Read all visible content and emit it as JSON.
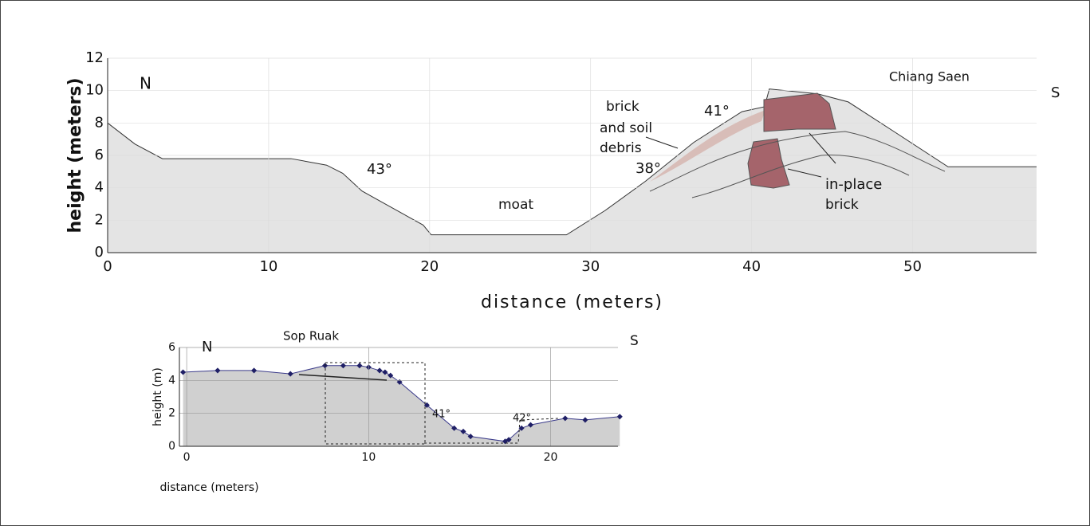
{
  "chart_data": [
    {
      "type": "area",
      "xlabel": "distance (meters)",
      "ylabel": "height (meters)",
      "x": [
        0,
        1.7,
        3.4,
        11.4,
        13.6,
        14.6,
        15.8,
        19.6,
        20.1,
        28.5,
        30.9,
        33.4,
        36.4,
        39.4,
        40.8,
        41.1,
        44.1,
        46.0,
        48.8,
        52.2,
        57.7
      ],
      "series": [
        {
          "name": "Chiang Saen",
          "color": "#333333",
          "fill": "#e4e4e4",
          "values": [
            8.0,
            6.7,
            5.8,
            5.8,
            5.4,
            4.9,
            3.8,
            1.7,
            1.1,
            1.1,
            2.6,
            4.4,
            6.8,
            8.7,
            9.0,
            10.1,
            9.8,
            9.3,
            7.5,
            5.3,
            5.3
          ]
        }
      ],
      "xlim": [
        0,
        57.7
      ],
      "xticks": [
        0,
        10,
        20,
        30,
        40,
        50
      ],
      "ylim": [
        0,
        12
      ],
      "yticks": [
        0,
        2,
        4,
        6,
        8,
        10,
        12
      ],
      "grid": true,
      "annotations": [
        "N",
        "S",
        "43°",
        "moat",
        "38°",
        "41°",
        "brick",
        "and soil",
        "debris",
        "in-place",
        "brick"
      ]
    },
    {
      "type": "area",
      "title": "Sop Ruak",
      "xlabel": "distance (meters)",
      "ylabel": "height (m)",
      "x": [
        -0.2,
        1.7,
        3.7,
        5.7,
        7.6,
        8.6,
        9.5,
        10.0,
        10.6,
        10.9,
        11.2,
        11.7,
        13.2,
        14.7,
        15.2,
        15.6,
        17.5,
        17.7,
        18.4,
        18.9,
        20.8,
        21.9,
        23.8
      ],
      "series": [
        {
          "name": "Sop Ruak",
          "color": "#3a3a8a",
          "fill": "#d0d0d0",
          "marker": "#1f1f66",
          "values": [
            4.5,
            4.6,
            4.6,
            4.4,
            4.9,
            4.9,
            4.9,
            4.8,
            4.6,
            4.5,
            4.3,
            3.9,
            2.5,
            1.1,
            0.9,
            0.6,
            0.3,
            0.4,
            1.1,
            1.3,
            1.7,
            1.6,
            1.8
          ]
        }
      ],
      "xlim": [
        -0.4,
        23.7
      ],
      "xticks": [
        0,
        10,
        20
      ],
      "ylim": [
        0,
        6
      ],
      "yticks": [
        0,
        2,
        4,
        6
      ],
      "grid": true,
      "annotations": [
        "N",
        "S",
        "41°",
        "42°"
      ]
    }
  ]
}
